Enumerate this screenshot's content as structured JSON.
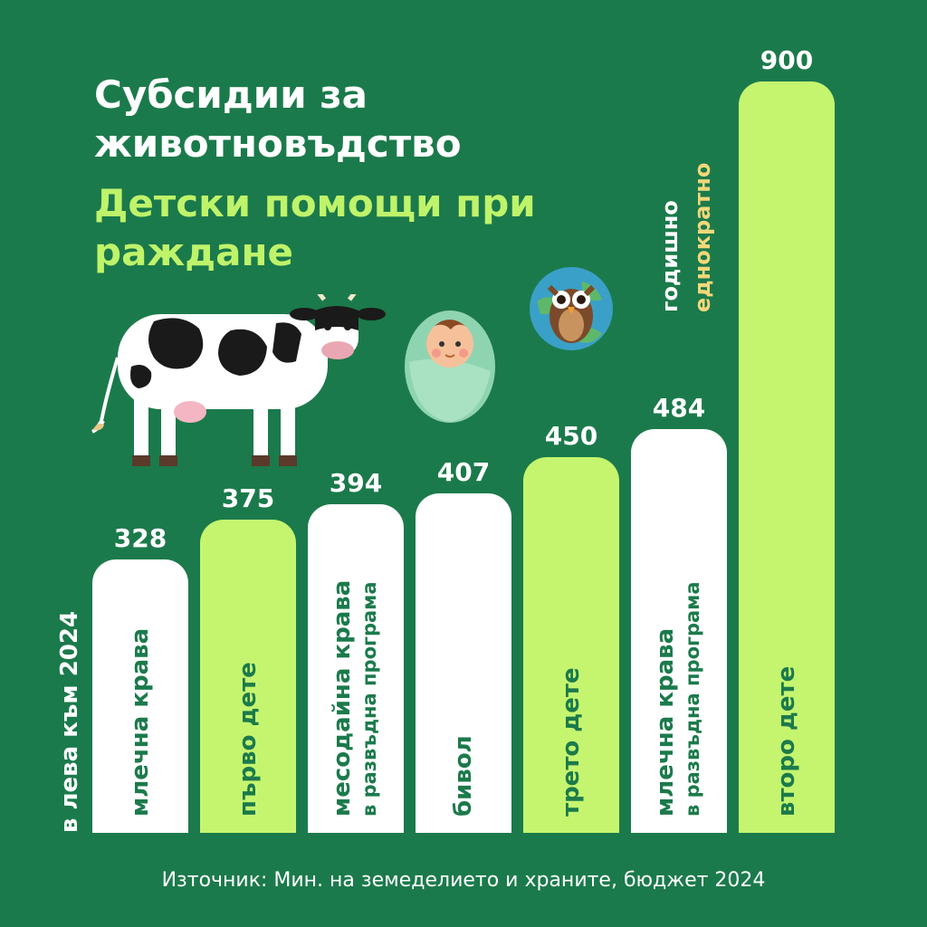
{
  "title": "Субсидии за животновъдство",
  "subtitle": "Детски помощи при раждане",
  "unit_label": "в лева към 2024",
  "legend": {
    "yearly": "годишно",
    "one_time": "еднократно"
  },
  "source": "Източник: Мин. на земеделието и храните, бюджет 2024",
  "colors": {
    "background": "#1b7a4b",
    "subsidy_bar": "#ffffff",
    "child_benefit_bar": "#c5f56f",
    "title": "#ffffff",
    "subtitle": "#bff36a",
    "one_time_legend": "#f2d77a"
  },
  "illustrations": [
    "cow-icon",
    "baby-icon",
    "owl-globe-icon"
  ],
  "chart_data": {
    "type": "bar",
    "categories": [
      "млечна крава",
      "първо дете",
      "месодайна крава в развъдна програма",
      "бивол",
      "трето дете",
      "млечна крава в развъдна програма",
      "второ дете"
    ],
    "bars": [
      {
        "line1": "млечна крава",
        "line2": "",
        "value": 328,
        "group": "субсидии"
      },
      {
        "line1": "първо дете",
        "line2": "",
        "value": 375,
        "group": "детски помощи"
      },
      {
        "line1": "месодайна крава",
        "line2": "в развъдна програма",
        "value": 394,
        "group": "субсидии"
      },
      {
        "line1": "бивол",
        "line2": "",
        "value": 407,
        "group": "субсидии"
      },
      {
        "line1": "трето дете",
        "line2": "",
        "value": 450,
        "group": "детски помощи"
      },
      {
        "line1": "млечна крава",
        "line2": "в развъдна програма",
        "value": 484,
        "group": "субсидии"
      },
      {
        "line1": "второ дете",
        "line2": "",
        "value": 900,
        "group": "детски помощи"
      }
    ],
    "values": [
      328,
      375,
      394,
      407,
      450,
      484,
      900
    ],
    "value_labels": [
      "328",
      "375",
      "394",
      "407",
      "450",
      "484",
      "900"
    ],
    "title": "Субсидии за животновъдство",
    "subtitle": "Детски помощи при раждане",
    "ylabel": "в лева към 2024",
    "ylim": [
      0,
      900
    ],
    "grid": false,
    "legend_position": "top-right"
  }
}
